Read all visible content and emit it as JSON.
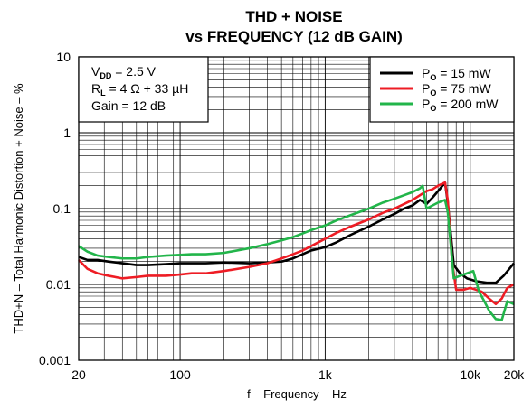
{
  "chart_data": {
    "type": "line",
    "title": [
      "THD + NOISE",
      "vs FREQUENCY (12 dB GAIN)"
    ],
    "xlabel": "f – Frequency – Hz",
    "ylabel": "THD+N – Total Harmonic Distortion + Noise – %",
    "x_scale": "log",
    "y_scale": "log",
    "xlim": [
      20,
      20000
    ],
    "ylim": [
      0.001,
      10
    ],
    "x_ticks": [
      {
        "value": 20,
        "label": "20"
      },
      {
        "value": 100,
        "label": "100"
      },
      {
        "value": 1000,
        "label": "1k"
      },
      {
        "value": 10000,
        "label": "10k"
      },
      {
        "value": 20000,
        "label": "20k"
      }
    ],
    "y_ticks": [
      {
        "value": 10,
        "label": "10"
      },
      {
        "value": 1,
        "label": "1"
      },
      {
        "value": 0.1,
        "label": "0.1"
      },
      {
        "value": 0.01,
        "label": "0.01"
      },
      {
        "value": 0.001,
        "label": "0.001"
      }
    ],
    "grid": true,
    "legend_position": "top-right",
    "conditions": [
      {
        "main": "V",
        "sub": "DD",
        "rest": " = 2.5 V"
      },
      {
        "main": "R",
        "sub": "L",
        "rest": " = 4 Ω + 33 µH"
      },
      {
        "main": "Gain = 12 dB",
        "sub": "",
        "rest": ""
      }
    ],
    "series": [
      {
        "name_main": "P",
        "name_sub": "O",
        "name_rest": " = 15 mW",
        "color": "#000000",
        "points": [
          [
            20,
            0.023
          ],
          [
            23,
            0.021
          ],
          [
            27,
            0.021
          ],
          [
            32,
            0.02
          ],
          [
            40,
            0.019
          ],
          [
            50,
            0.018
          ],
          [
            60,
            0.018
          ],
          [
            80,
            0.0185
          ],
          [
            100,
            0.019
          ],
          [
            120,
            0.019
          ],
          [
            150,
            0.019
          ],
          [
            200,
            0.0195
          ],
          [
            300,
            0.019
          ],
          [
            400,
            0.0195
          ],
          [
            500,
            0.02
          ],
          [
            600,
            0.022
          ],
          [
            700,
            0.025
          ],
          [
            800,
            0.028
          ],
          [
            1000,
            0.031
          ],
          [
            1200,
            0.036
          ],
          [
            1500,
            0.045
          ],
          [
            2000,
            0.058
          ],
          [
            2500,
            0.072
          ],
          [
            3000,
            0.085
          ],
          [
            3500,
            0.1
          ],
          [
            4000,
            0.11
          ],
          [
            4500,
            0.13
          ],
          [
            5000,
            0.115
          ],
          [
            5500,
            0.14
          ],
          [
            6000,
            0.17
          ],
          [
            6700,
            0.22
          ],
          [
            7000,
            0.12
          ],
          [
            7700,
            0.018
          ],
          [
            8500,
            0.014
          ],
          [
            9500,
            0.012
          ],
          [
            11000,
            0.011
          ],
          [
            13000,
            0.0105
          ],
          [
            15000,
            0.0105
          ],
          [
            17000,
            0.013
          ],
          [
            20000,
            0.019
          ]
        ]
      },
      {
        "name_main": "P",
        "name_sub": "O",
        "name_rest": " = 75 mW",
        "color": "#ee1c24",
        "points": [
          [
            20,
            0.021
          ],
          [
            23,
            0.016
          ],
          [
            27,
            0.014
          ],
          [
            32,
            0.013
          ],
          [
            40,
            0.012
          ],
          [
            50,
            0.0125
          ],
          [
            60,
            0.013
          ],
          [
            80,
            0.013
          ],
          [
            100,
            0.0135
          ],
          [
            120,
            0.014
          ],
          [
            150,
            0.014
          ],
          [
            200,
            0.015
          ],
          [
            300,
            0.017
          ],
          [
            400,
            0.019
          ],
          [
            500,
            0.022
          ],
          [
            600,
            0.025
          ],
          [
            700,
            0.028
          ],
          [
            800,
            0.032
          ],
          [
            1000,
            0.04
          ],
          [
            1200,
            0.048
          ],
          [
            1500,
            0.058
          ],
          [
            2000,
            0.072
          ],
          [
            2500,
            0.088
          ],
          [
            3000,
            0.1
          ],
          [
            3500,
            0.115
          ],
          [
            4000,
            0.13
          ],
          [
            4500,
            0.15
          ],
          [
            5000,
            0.17
          ],
          [
            5500,
            0.18
          ],
          [
            6000,
            0.2
          ],
          [
            6700,
            0.22
          ],
          [
            7000,
            0.13
          ],
          [
            7500,
            0.02
          ],
          [
            8000,
            0.0085
          ],
          [
            9000,
            0.0085
          ],
          [
            10000,
            0.009
          ],
          [
            11000,
            0.0085
          ],
          [
            12000,
            0.008
          ],
          [
            13500,
            0.0065
          ],
          [
            15000,
            0.0055
          ],
          [
            16500,
            0.0065
          ],
          [
            18000,
            0.009
          ],
          [
            20000,
            0.01
          ]
        ]
      },
      {
        "name_main": "P",
        "name_sub": "O",
        "name_rest": " = 200 mW",
        "color": "#22b54a",
        "points": [
          [
            20,
            0.032
          ],
          [
            23,
            0.027
          ],
          [
            27,
            0.024
          ],
          [
            32,
            0.023
          ],
          [
            40,
            0.022
          ],
          [
            50,
            0.022
          ],
          [
            60,
            0.023
          ],
          [
            80,
            0.024
          ],
          [
            100,
            0.0245
          ],
          [
            120,
            0.025
          ],
          [
            150,
            0.025
          ],
          [
            200,
            0.026
          ],
          [
            300,
            0.03
          ],
          [
            400,
            0.034
          ],
          [
            500,
            0.038
          ],
          [
            600,
            0.042
          ],
          [
            700,
            0.047
          ],
          [
            800,
            0.052
          ],
          [
            1000,
            0.06
          ],
          [
            1200,
            0.07
          ],
          [
            1500,
            0.082
          ],
          [
            2000,
            0.1
          ],
          [
            2500,
            0.12
          ],
          [
            3000,
            0.135
          ],
          [
            3500,
            0.15
          ],
          [
            4000,
            0.165
          ],
          [
            4500,
            0.185
          ],
          [
            4700,
            0.2
          ],
          [
            5000,
            0.1
          ],
          [
            5500,
            0.11
          ],
          [
            6000,
            0.12
          ],
          [
            6700,
            0.13
          ],
          [
            7000,
            0.09
          ],
          [
            7700,
            0.012
          ],
          [
            8500,
            0.013
          ],
          [
            9500,
            0.014
          ],
          [
            10500,
            0.015
          ],
          [
            11500,
            0.008
          ],
          [
            12500,
            0.006
          ],
          [
            13500,
            0.0045
          ],
          [
            15000,
            0.0035
          ],
          [
            16500,
            0.0034
          ],
          [
            18000,
            0.006
          ],
          [
            20000,
            0.0055
          ]
        ]
      }
    ]
  }
}
